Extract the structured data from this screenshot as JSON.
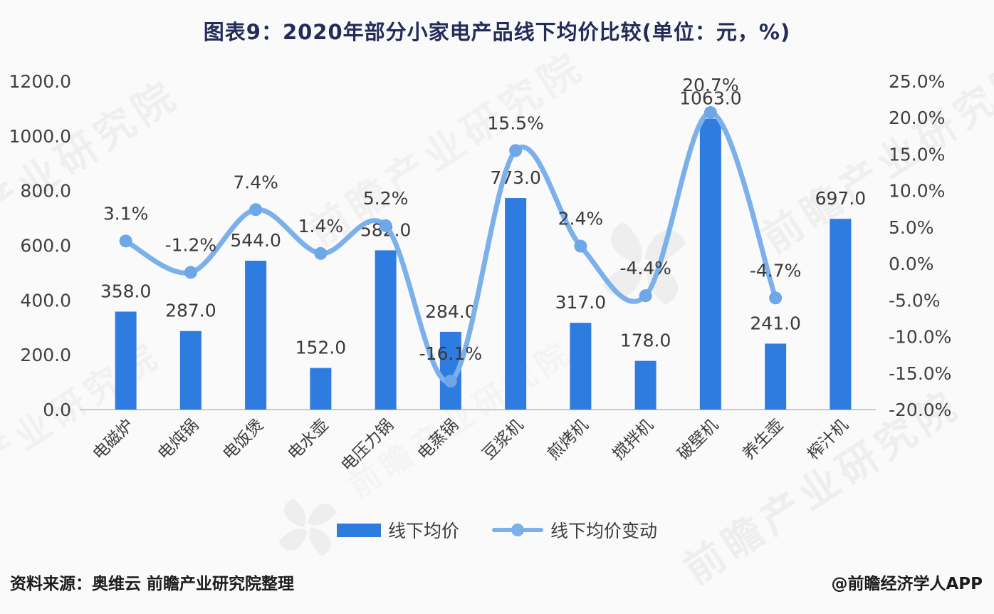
{
  "title": "图表9：2020年部分小家电产品线下均价比较(单位：元，%)",
  "watermark": {
    "text": "前瞻产业研究院"
  },
  "legend": [
    {
      "label": "线下均价",
      "type": "bar"
    },
    {
      "label": "线下均价变动",
      "type": "line"
    }
  ],
  "footer": {
    "source": "资料来源：奥维云 前瞻产业研究院整理",
    "credit": "@前瞻经济学人APP"
  },
  "colors": {
    "bar": "#2f7ce0",
    "line": "#7cb0ea",
    "dot": "#6da7e8",
    "axis_text": "#404040",
    "value_text": "#3a3a3a",
    "title_text": "#242b58",
    "axis_line": "#c9c9c9"
  },
  "chart_data": {
    "type": "bar",
    "subtype": "bar+line-dual-axis",
    "title": "图表9：2020年部分小家电产品线下均价比较(单位：元，%)",
    "categories": [
      "电磁炉",
      "电炖锅",
      "电饭煲",
      "电水壶",
      "电压力锅",
      "电蒸锅",
      "豆浆机",
      "煎烤机",
      "搅拌机",
      "破壁机",
      "养生壶",
      "榨汁机"
    ],
    "series": [
      {
        "name": "线下均价",
        "type": "bar",
        "axis": "left",
        "unit": "元",
        "values": [
          358,
          287,
          544,
          152,
          582,
          284,
          773,
          317,
          178,
          1063,
          241,
          697
        ],
        "labels": [
          "358.0",
          "287.0",
          "544.0",
          "152.0",
          "582.0",
          "284.0",
          "773.0",
          "317.0",
          "178.0",
          "1063.0",
          "241.0",
          "697.0"
        ]
      },
      {
        "name": "线下均价变动",
        "type": "line",
        "axis": "right",
        "unit": "%",
        "values": [
          3.1,
          -1.2,
          7.4,
          1.4,
          5.2,
          -16.1,
          15.5,
          2.4,
          -4.4,
          20.7,
          -4.7,
          null
        ],
        "labels": [
          "3.1%",
          "-1.2%",
          "7.4%",
          "1.4%",
          "5.2%",
          "-16.1%",
          "15.5%",
          "2.4%",
          "-4.4%",
          "20.7%",
          "-4.7%",
          null
        ]
      }
    ],
    "left_axis": {
      "min": 0,
      "max": 1200,
      "ticks": [
        "1200.0",
        "1000.0",
        "800.0",
        "600.0",
        "400.0",
        "200.0",
        "0.0"
      ]
    },
    "right_axis": {
      "min": -20,
      "max": 25,
      "ticks": [
        "25.0%",
        "20.0%",
        "15.0%",
        "10.0%",
        "5.0%",
        "0.0%",
        "-5.0%",
        "-10.0%",
        "-15.0%",
        "-20.0%"
      ]
    },
    "grid": false,
    "legend_position": "bottom"
  }
}
